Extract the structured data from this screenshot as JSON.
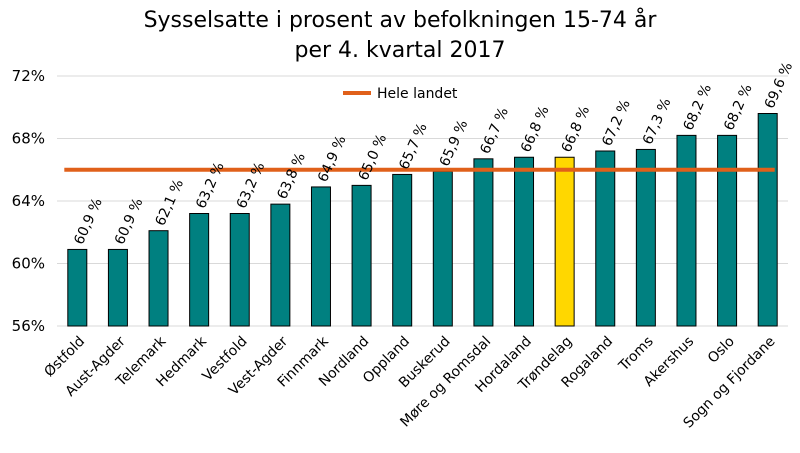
{
  "chart_data": {
    "type": "bar",
    "title_line1": "Sysselsatte i prosent av befolkningen 15-74 år",
    "title_line2": "per 4. kvartal 2017",
    "categories": [
      "Østfold",
      "Aust-Agder",
      "Telemark",
      "Hedmark",
      "Vestfold",
      "Vest-Agder",
      "Finnmark",
      "Nordland",
      "Oppland",
      "Buskerud",
      "Møre og Romsdal",
      "Hordaland",
      "Trøndelag",
      "Rogaland",
      "Troms",
      "Akershus",
      "Oslo",
      "Sogn og Fjordane"
    ],
    "values": [
      60.9,
      60.9,
      62.1,
      63.2,
      63.2,
      63.8,
      64.9,
      65.0,
      65.7,
      65.9,
      66.7,
      66.8,
      66.8,
      67.2,
      67.3,
      68.2,
      68.2,
      69.6
    ],
    "value_labels": [
      "60,9 %",
      "60,9 %",
      "62,1 %",
      "63,2 %",
      "63,2 %",
      "63,8 %",
      "64,9 %",
      "65,0 %",
      "65,7 %",
      "65,9 %",
      "66,7 %",
      "66,8 %",
      "66,8 %",
      "67,2 %",
      "67,3 %",
      "68,2 %",
      "68,2 %",
      "69,6 %"
    ],
    "highlight_category": "Trøndelag",
    "reference_line": {
      "name": "Hele landet",
      "value": 66.0
    },
    "y_ticks": [
      56,
      60,
      64,
      68,
      72
    ],
    "y_tick_labels": [
      "56%",
      "60%",
      "64%",
      "68%",
      "72%"
    ],
    "ylim": [
      56,
      72
    ],
    "xlabel": "",
    "ylabel": "",
    "legend_position": "top-center",
    "colors": {
      "bar": "#008080",
      "highlight": "#FFD700",
      "line": "#E0601A",
      "grid": "#d9d9d9",
      "bar_outline": "#000000"
    }
  }
}
